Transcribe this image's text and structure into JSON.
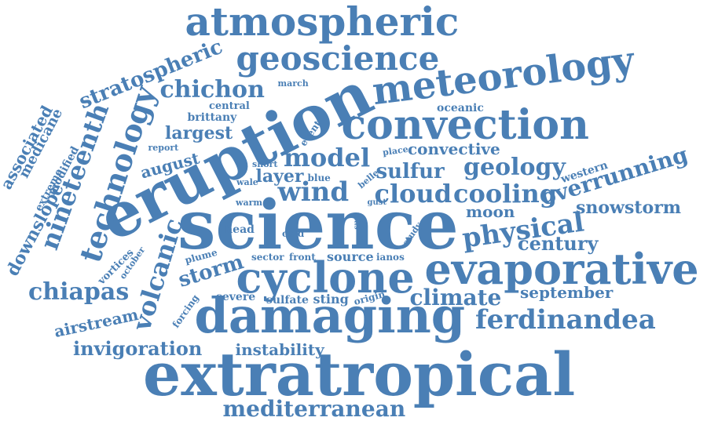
{
  "colors": {
    "word": "#4a7fb5",
    "background": "#ffffff"
  },
  "words": [
    "atmospheric",
    "geoscience",
    "stratospheric",
    "chichon",
    "meteorology",
    "eruption",
    "convection",
    "technology",
    "nineteenth",
    "associated",
    "medicane",
    "modified",
    "extreme",
    "downslope",
    "march",
    "central",
    "brittany",
    "oceanic",
    "largest",
    "report",
    "august",
    "event",
    "model",
    "place",
    "convective",
    "short",
    "layer",
    "blue",
    "sulfur",
    "geology",
    "western",
    "overrunning",
    "wale",
    "belle",
    "wind",
    "cloud",
    "cooling",
    "warm",
    "gust",
    "moon",
    "snowstorm",
    "science",
    "eruption_dup",
    "physical",
    "sun",
    "miso",
    "study",
    "head",
    "cold",
    "century",
    "volcanic",
    "vortices",
    "october",
    "plume",
    "sector",
    "front",
    "source",
    "ianos",
    "evaporative",
    "storm",
    "cyclone",
    "chiapas",
    "forcing",
    "severe",
    "sulfate",
    "sting",
    "origin",
    "climate",
    "september",
    "airstream",
    "damaging",
    "ferdinandea",
    "invigoration",
    "instability",
    "extratropical",
    "mediterranean"
  ],
  "text": {
    "atmospheric": "atmospheric",
    "geoscience": "geoscience",
    "stratospheric": "stratospheric",
    "chichon": "chichon",
    "meteorology": "meteorology",
    "eruption": "eruption",
    "convection": "convection",
    "technology": "technology",
    "nineteenth": "nineteenth",
    "associated": "associated",
    "medicane": "medicane",
    "modified": "modified",
    "extreme": "extreme",
    "downslope": "downslope",
    "march": "march",
    "central": "central",
    "brittany": "brittany",
    "oceanic": "oceanic",
    "largest": "largest",
    "report": "report",
    "august": "august",
    "event": "event",
    "model": "model",
    "place": "place",
    "convective": "convective",
    "short": "short",
    "layer": "layer",
    "blue": "blue",
    "sulfur": "sulfur",
    "geology": "geology",
    "western": "western",
    "overrunning": "overrunning",
    "wale": "wale",
    "belle": "belle",
    "wind": "wind",
    "cloud": "cloud",
    "cooling": "cooling",
    "warm": "warm",
    "gust": "gust",
    "moon": "moon",
    "snowstorm": "snowstorm",
    "science": "science",
    "eruption_dup": "",
    "physical": "physical",
    "sun": "sun",
    "miso": "miso",
    "study": "study",
    "head": "head",
    "cold": "cold",
    "century": "century",
    "volcanic": "volcanic",
    "vortices": "vortices",
    "october": "october",
    "plume": "plume",
    "sector": "sector",
    "front": "front",
    "source": "source",
    "ianos": "ianos",
    "evaporative": "evaporative",
    "storm": "storm",
    "cyclone": "cyclone",
    "chiapas": "chiapas",
    "forcing": "forcing",
    "severe": "severe",
    "sulfate": "sulfate",
    "sting": "sting",
    "origin": "origin",
    "climate": "climate",
    "september": "september",
    "airstream": "airstream",
    "damaging": "damaging",
    "ferdinandea": "ferdinandea",
    "invigoration": "invigoration",
    "instability": "instability",
    "extratropical": "extratropical",
    "mediterranean": "mediterranean"
  }
}
